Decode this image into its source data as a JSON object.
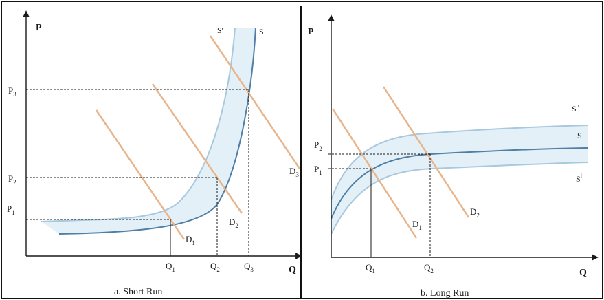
{
  "colors": {
    "axis": "#1a1a1a",
    "dashed": "#1a1a1a",
    "demand": "#e8b48a",
    "supply_main": "#4f7fa6",
    "supply_light": "#a8c8de",
    "band_fill": "#e4f0f8",
    "frame": "#111111"
  },
  "short_run": {
    "caption": "a. Short Run",
    "axis_p": "P",
    "axis_q": "Q",
    "price_labels": [
      "P",
      "P",
      "P"
    ],
    "price_subs": [
      "3",
      "2",
      "1"
    ],
    "quantity_labels": [
      "Q",
      "Q",
      "Q"
    ],
    "quantity_subs": [
      "1",
      "2",
      "3"
    ],
    "supply_labels": [
      "S'",
      "S"
    ],
    "demand_labels": [
      "D",
      "D",
      "D"
    ],
    "demand_subs": [
      "1",
      "2",
      "3"
    ]
  },
  "long_run": {
    "caption": "b. Long Run",
    "axis_p": "P",
    "axis_q": "Q",
    "price_labels": [
      "P",
      "P"
    ],
    "price_subs": [
      "2",
      "1"
    ],
    "quantity_labels": [
      "Q",
      "Q"
    ],
    "quantity_subs": [
      "1",
      "2"
    ],
    "supply_labels": [
      "S",
      "S",
      "S"
    ],
    "supply_sups": [
      "u",
      "",
      "l"
    ],
    "demand_labels": [
      "D",
      "D"
    ],
    "demand_subs": [
      "1",
      "2"
    ]
  }
}
